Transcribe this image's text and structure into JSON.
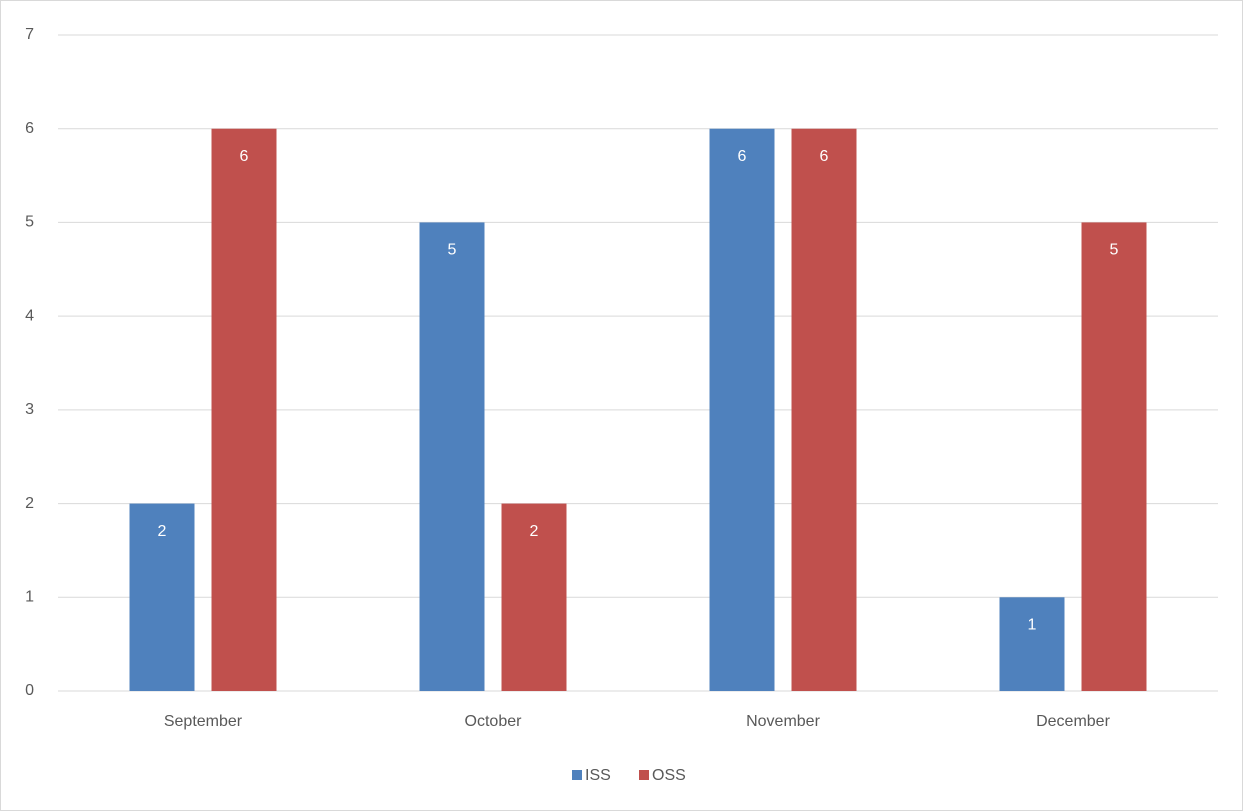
{
  "chart_data": {
    "type": "bar",
    "categories": [
      "September",
      "October",
      "November",
      "December"
    ],
    "series": [
      {
        "name": "ISS",
        "color": "#4f81bd",
        "values": [
          2,
          5,
          6,
          1
        ]
      },
      {
        "name": "OSS",
        "color": "#c0504d",
        "values": [
          6,
          2,
          6,
          5
        ]
      }
    ],
    "ylim": [
      0,
      7
    ],
    "yticks": [
      0,
      1,
      2,
      3,
      4,
      5,
      6,
      7
    ],
    "grid": true,
    "legend": "bottom"
  }
}
